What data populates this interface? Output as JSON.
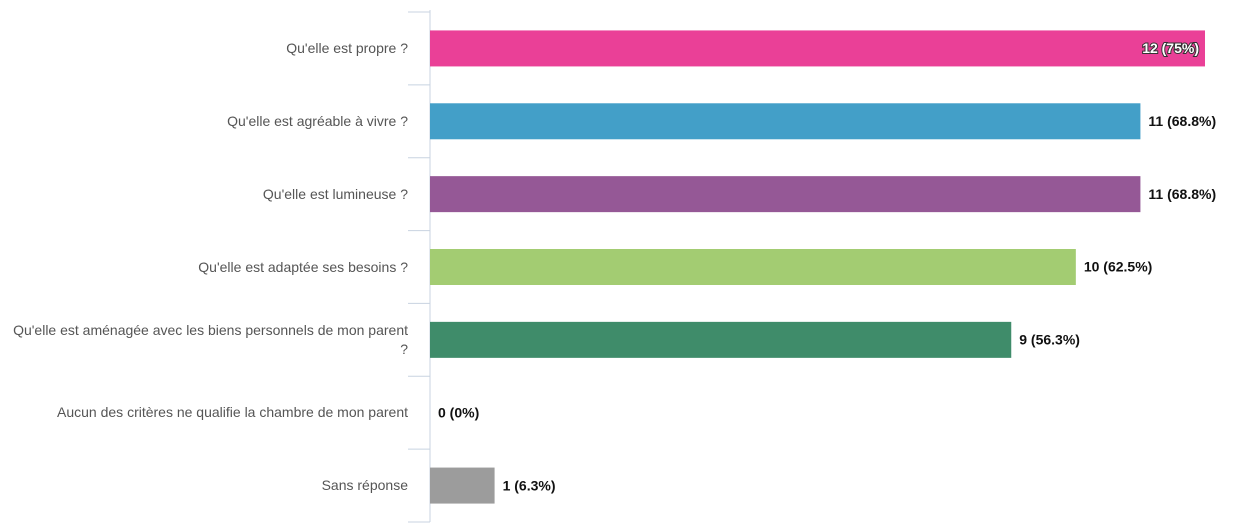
{
  "chart_data": {
    "type": "hbar",
    "categories": [
      "Qu'elle est propre ?",
      "Qu'elle est agréable à vivre ?",
      "Qu'elle est lumineuse ?",
      "Qu'elle est adaptée ses besoins ?",
      "Qu'elle est aménagée avec les biens personnels de mon parent ?",
      "Aucun des critères ne qualifie la chambre de mon parent",
      "Sans réponse"
    ],
    "values": [
      12,
      11,
      11,
      10,
      9,
      0,
      1
    ],
    "value_labels": [
      "12 (75%)",
      "11 (68.8%)",
      "11 (68.8%)",
      "10 (62.5%)",
      "9 (56.3%)",
      "0 (0%)",
      "1 (6.3%)"
    ],
    "colors": [
      "#ea4097",
      "#439fc8",
      "#955896",
      "#a3cc72",
      "#3f8c6a",
      "#888888",
      "#9c9c9c"
    ],
    "xlim": [
      0,
      12
    ]
  }
}
